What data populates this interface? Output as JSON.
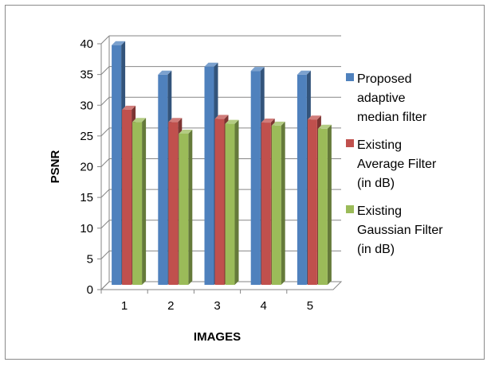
{
  "chart_data": {
    "type": "bar",
    "style": "3d-clustered-column",
    "categories": [
      "1",
      "2",
      "3",
      "4",
      "5"
    ],
    "series": [
      {
        "name": "Proposed adaptive median filter",
        "legend_lines": [
          "Proposed",
          "adaptive",
          "median filter"
        ],
        "color": "#4F81BD",
        "values": [
          39,
          34.2,
          35.5,
          34.8,
          34.2
        ]
      },
      {
        "name": "Existing Average Filter (in dB)",
        "legend_lines": [
          "Existing",
          "Average Filter",
          "(in dB)"
        ],
        "color": "#C0504D",
        "values": [
          28.5,
          26.5,
          27,
          26.4,
          26.9
        ]
      },
      {
        "name": "Existing Gaussian Filter (in dB)",
        "legend_lines": [
          "Existing",
          "Gaussian Filter",
          "(in dB)"
        ],
        "color": "#9BBB59",
        "values": [
          26.5,
          24.6,
          26.2,
          25.9,
          25.4
        ]
      }
    ],
    "xlabel": "IMAGES",
    "ylabel": "PSNR",
    "ylim": [
      0,
      40
    ],
    "yticks": [
      "0",
      "5",
      "10",
      "15",
      "20",
      "25",
      "30",
      "35",
      "40"
    ],
    "grid": true,
    "legend_position": "right"
  }
}
